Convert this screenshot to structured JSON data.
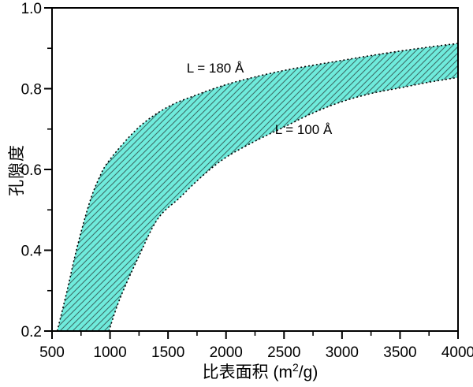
{
  "chart_data": {
    "type": "area",
    "title": "",
    "xlabel": "比表面积 (m²/g)",
    "xlabel_parts": {
      "pre": "比表面积 (m",
      "sup": "2",
      "post": "/g)"
    },
    "ylabel": "孔隙度",
    "xlim": [
      500,
      4000
    ],
    "ylim": [
      0.2,
      1.0
    ],
    "grid": false,
    "legend_position": "none-inline-curve-labels",
    "x_ticks": {
      "values": [
        500,
        1000,
        1500,
        2000,
        2500,
        3000,
        3500,
        4000
      ],
      "labels": [
        "500",
        "1000",
        "1500",
        "2000",
        "2500",
        "3000",
        "3500",
        "4000"
      ],
      "minor": [
        750,
        1250,
        1750,
        2250,
        2750,
        3250,
        3750
      ]
    },
    "y_ticks": {
      "values": [
        0.2,
        0.4,
        0.6,
        0.8,
        1.0
      ],
      "labels": [
        "0.2",
        "0.4",
        "0.6",
        "0.8",
        "1.0"
      ],
      "minor": [
        0.3,
        0.5,
        0.7,
        0.9
      ]
    },
    "band": {
      "description": "shaded region between the two curves",
      "fill_color": "#6FEBDC",
      "hatch_color": "#3E6E68",
      "hatch_style": "diagonal-forward-slash",
      "edge_style": "dotted",
      "edge_color": "#000000"
    },
    "series": [
      {
        "name": "L = 180 Å",
        "role": "upper-bound-curve",
        "points": [
          [
            545,
            0.2
          ],
          [
            630,
            0.3
          ],
          [
            710,
            0.4
          ],
          [
            815,
            0.51
          ],
          [
            900,
            0.575
          ],
          [
            1000,
            0.625
          ],
          [
            1250,
            0.705
          ],
          [
            1500,
            0.755
          ],
          [
            1750,
            0.785
          ],
          [
            2000,
            0.81
          ],
          [
            2250,
            0.829
          ],
          [
            2500,
            0.845
          ],
          [
            2750,
            0.858
          ],
          [
            3000,
            0.87
          ],
          [
            3250,
            0.882
          ],
          [
            3500,
            0.893
          ],
          [
            3750,
            0.903
          ],
          [
            4000,
            0.912
          ]
        ],
        "label": {
          "text": "L = 180 Å",
          "x": 1910,
          "y": 0.849
        }
      },
      {
        "name": "L = 100 Å",
        "role": "lower-bound-curve",
        "points": [
          [
            990,
            0.2
          ],
          [
            1085,
            0.28
          ],
          [
            1240,
            0.38
          ],
          [
            1410,
            0.477
          ],
          [
            1600,
            0.53
          ],
          [
            1800,
            0.585
          ],
          [
            2000,
            0.63
          ],
          [
            2250,
            0.67
          ],
          [
            2500,
            0.705
          ],
          [
            2750,
            0.74
          ],
          [
            3000,
            0.768
          ],
          [
            3250,
            0.788
          ],
          [
            3500,
            0.802
          ],
          [
            3750,
            0.816
          ],
          [
            4000,
            0.828
          ]
        ],
        "label": {
          "text": "L = 100 Å",
          "x": 2670,
          "y": 0.697
        }
      }
    ]
  }
}
